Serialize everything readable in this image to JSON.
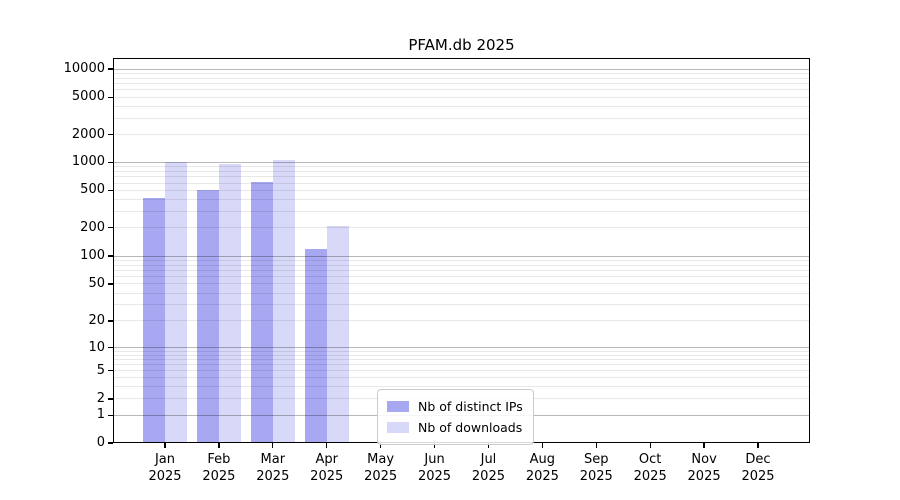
{
  "chart_data": {
    "type": "bar",
    "title": "PFAM.db 2025",
    "categories": [
      "Jan",
      "Feb",
      "Mar",
      "Apr",
      "May",
      "Jun",
      "Jul",
      "Aug",
      "Sep",
      "Oct",
      "Nov",
      "Dec"
    ],
    "category_year": "2025",
    "series": [
      {
        "name": "Nb of distinct IPs",
        "color": "#a8a8f2",
        "values": [
          420,
          500,
          615,
          120,
          null,
          null,
          null,
          null,
          null,
          null,
          null,
          null
        ]
      },
      {
        "name": "Nb of downloads",
        "color": "#d8d8f8",
        "values": [
          1020,
          950,
          1060,
          210,
          null,
          null,
          null,
          null,
          null,
          null,
          null,
          null
        ]
      }
    ],
    "y_axis": {
      "scale": "symlog",
      "ticks": [
        0,
        1,
        2,
        5,
        10,
        20,
        50,
        100,
        200,
        500,
        1000,
        2000,
        5000,
        10000
      ],
      "major_gridlines": [
        1,
        10,
        100,
        1000,
        10000
      ],
      "anchors": [
        [
          0,
          1.0
        ],
        [
          1,
          0.9283
        ],
        [
          2,
          0.8857
        ],
        [
          5,
          0.8122
        ],
        [
          10,
          0.7525
        ],
        [
          20,
          0.6831
        ],
        [
          50,
          0.587
        ],
        [
          100,
          0.5143
        ],
        [
          200,
          0.4408
        ],
        [
          500,
          0.3439
        ],
        [
          1000,
          0.2712
        ],
        [
          2000,
          0.1992
        ],
        [
          5000,
          0.1023
        ],
        [
          10000,
          0.0286
        ]
      ]
    },
    "legend": {
      "position": "lower-center"
    },
    "grid": "on"
  },
  "colors": {
    "bar_ips": "#a8a8f2",
    "bar_downloads": "#d8d8f8",
    "grid_major": "rgba(0,0,0,0.28)",
    "grid_minor": "rgba(0,0,0,0.09)",
    "spine": "#000000",
    "background": "#ffffff"
  }
}
